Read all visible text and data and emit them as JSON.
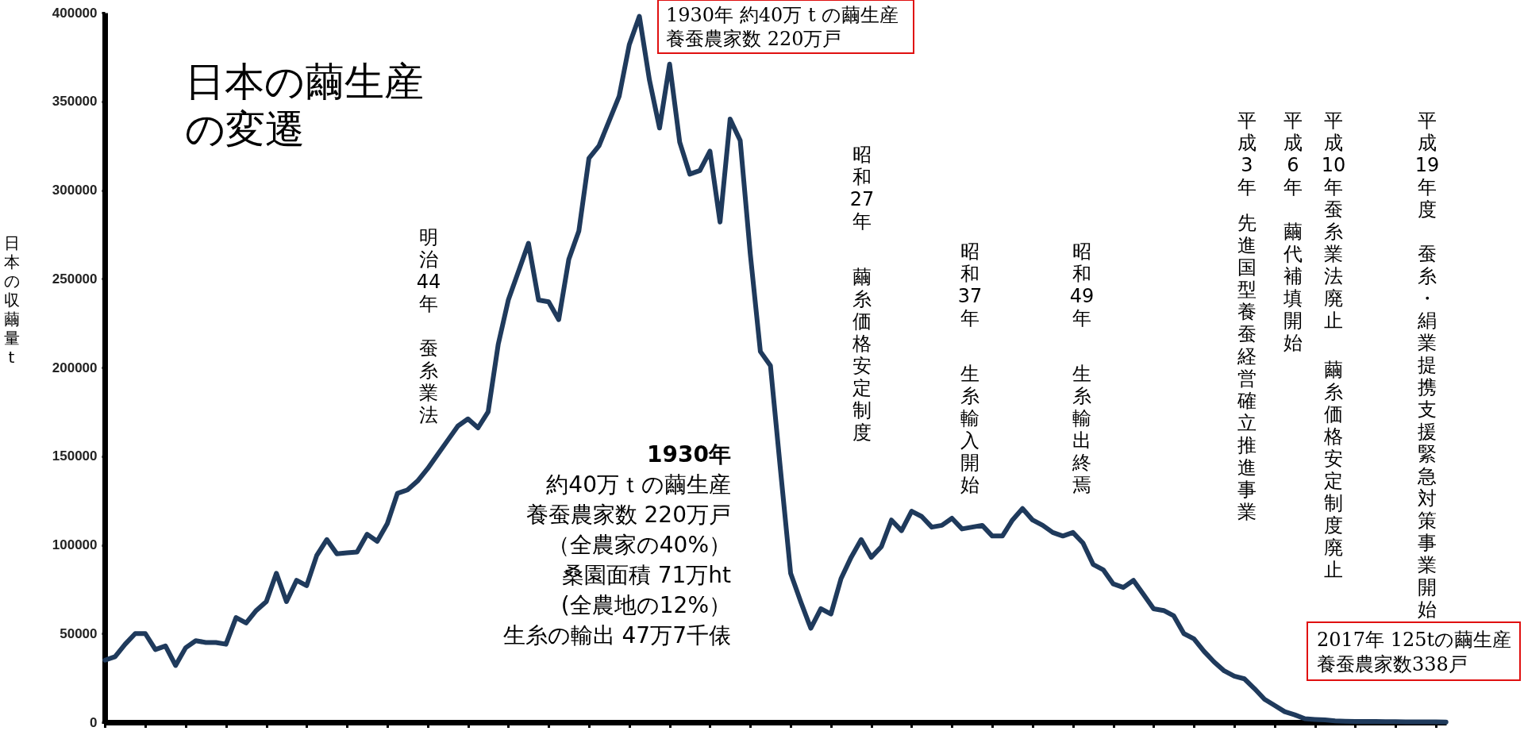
{
  "chart_data": {
    "type": "line",
    "title": "日本の繭生産の変遷",
    "ylabel": "日本の収繭量t",
    "color": "#1f3a5c",
    "ylim": [
      0,
      400000
    ],
    "yticks": [
      0,
      50000,
      100000,
      150000,
      200000,
      250000,
      300000,
      350000,
      400000
    ],
    "tick_labels": "y",
    "categories": [
      null,
      null,
      null,
      null,
      null,
      null,
      null,
      null,
      null,
      null,
      null,
      null,
      null,
      null,
      null,
      null,
      null,
      null,
      null,
      null,
      null,
      null,
      null,
      null,
      null,
      null,
      null,
      null,
      null,
      null,
      null,
      null,
      null,
      null,
      null,
      null,
      null,
      null,
      null,
      null,
      null,
      null,
      null,
      null,
      null,
      null,
      null,
      null,
      null,
      null,
      null,
      null,
      null,
      null,
      null,
      null,
      null,
      null,
      null,
      null,
      null,
      null,
      null,
      null,
      null,
      null,
      null,
      null,
      null,
      null,
      null,
      null,
      null,
      null,
      null,
      null,
      null,
      null,
      null,
      null,
      null,
      null,
      null,
      null,
      null,
      null,
      null,
      null,
      null,
      null,
      null,
      null,
      null,
      null,
      null,
      null,
      null,
      null,
      null,
      null,
      null,
      null,
      null,
      null,
      null,
      null,
      null,
      null,
      null,
      null,
      null,
      null,
      null,
      null,
      null,
      null,
      null,
      null,
      null,
      null,
      null,
      null,
      null,
      null,
      null,
      null,
      null,
      null,
      null,
      null,
      null,
      null,
      null,
      null
    ],
    "values": [
      35000,
      37000,
      44000,
      50000,
      50000,
      41000,
      43000,
      32000,
      42000,
      46000,
      45000,
      45000,
      44000,
      59000,
      56000,
      63000,
      68000,
      84000,
      68000,
      80000,
      77000,
      94000,
      103000,
      95000,
      95500,
      96000,
      106000,
      102000,
      112000,
      129000,
      131000,
      136000,
      143000,
      151000,
      159000,
      167000,
      171000,
      166000,
      175000,
      213000,
      238000,
      254000,
      270000,
      238000,
      237000,
      227000,
      261000,
      277000,
      318000,
      325000,
      339000,
      353000,
      382000,
      398000,
      362000,
      335000,
      371000,
      327000,
      309000,
      311000,
      322000,
      282000,
      340000,
      328000,
      264000,
      209000,
      201000,
      142000,
      84000,
      68000,
      53000,
      64000,
      61000,
      81000,
      93000,
      103000,
      93000,
      99000,
      114000,
      108000,
      119000,
      116000,
      110000,
      111000,
      115000,
      109000,
      110000,
      111000,
      105000,
      105000,
      114000,
      120500,
      114000,
      111000,
      107000,
      105000,
      107000,
      101000,
      89000,
      86000,
      78000,
      76000,
      80000,
      72000,
      64000,
      63000,
      60000,
      50000,
      47000,
      40000,
      34000,
      29000,
      26000,
      24500,
      19000,
      13000,
      9500,
      6000,
      4200,
      2000,
      1600,
      1300,
      800,
      600,
      500,
      400,
      400,
      300,
      300,
      200,
      200,
      200,
      200,
      100
    ],
    "annotations": [
      "明治44年",
      "蚕糸業法",
      "1930年",
      "約40万ｔの繭生産",
      "養蚕農家数 220万戸",
      "（全農家の40%）",
      "桑園面積 71万ht",
      "(全農地の12%）",
      "生糸の輸出 47万7千俵",
      "1930年 約40万 t の繭生産",
      "養蚕農家数 220万戸",
      "昭和27年",
      "繭糸価格安定制度",
      "昭和37年",
      "生糸輸入開始",
      "昭和49年",
      "生糸輸出終焉",
      "平成3年",
      "先進国型養蚕経営確立推進事業",
      "平成6年",
      "繭代補填開始",
      "平成10年蚕糸業法廃止",
      "繭糸価格安定制度廃止",
      "平成19年度",
      "蚕糸・絹業提携支援緊急対策事業開始",
      "2017年 125tの繭生産",
      "養蚕農家数338戸"
    ]
  }
}
